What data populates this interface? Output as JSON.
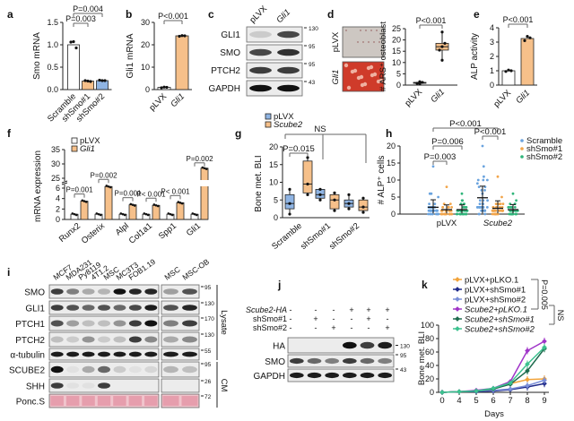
{
  "panel_labels": {
    "a": "a",
    "b": "b",
    "c": "c",
    "d": "d",
    "e": "e",
    "f": "f",
    "g": "g",
    "h": "h",
    "i": "i",
    "j": "j",
    "k": "k"
  },
  "colors": {
    "control": "#ffffff",
    "gli1": "#f6c08a",
    "scramble": "#7fa9dc",
    "sh1": "#f2a54a",
    "sh2": "#2fb57a",
    "bar_outline": "#222222"
  },
  "chart_data": [
    {
      "id": "a",
      "type": "bar",
      "title": "",
      "ylabel": "Smo mRNA",
      "xlabel": "",
      "categories": [
        "Scramble",
        "shSmo#1",
        "shSmo#2"
      ],
      "values": [
        1.0,
        0.19,
        0.2
      ],
      "points": [
        [
          1.06,
          1.07,
          0.93
        ],
        [
          0.2,
          0.19,
          0.18
        ],
        [
          0.21,
          0.2,
          0.2
        ]
      ],
      "bar_colors": [
        "#ffffff",
        "#f6c08a",
        "#8fb4e3"
      ],
      "ylim": [
        0,
        1.5
      ],
      "yticks": [
        0,
        0.5,
        1.0,
        1.5
      ],
      "yticklabels": [
        "0.0",
        "0.5",
        "1.0",
        "1.5"
      ],
      "annotations": [
        "P=0.004",
        "P=0.003"
      ]
    },
    {
      "id": "b",
      "type": "bar",
      "ylabel": "Gli1 mRNA",
      "categories": [
        "pLVX",
        "Gli1"
      ],
      "values": [
        1,
        24
      ],
      "points": [
        [
          0.8,
          1.1,
          1.0
        ],
        [
          23.8,
          24.1,
          24.0
        ]
      ],
      "bar_colors": [
        "#ffffff",
        "#f6c08a"
      ],
      "ylim": [
        0,
        30
      ],
      "yticks": [
        0,
        10,
        20,
        30
      ],
      "yticklabels": [
        "0",
        "10",
        "20",
        "30"
      ],
      "annotations": [
        "P<0.001"
      ]
    },
    {
      "id": "d",
      "type": "box",
      "ylabel": "# ARS⁺ osteoblast",
      "categories": [
        "pLVX",
        "Gli1"
      ],
      "boxes": [
        {
          "min": 0.5,
          "q1": 0.8,
          "median": 1,
          "q3": 1.2,
          "max": 1.5
        },
        {
          "min": 11,
          "q1": 15.5,
          "median": 17,
          "q3": 18.5,
          "max": 23.5
        }
      ],
      "box_colors": [
        "#ffffff",
        "#f6c08a"
      ],
      "ylim": [
        0,
        25
      ],
      "yticks": [
        0,
        5,
        10,
        15,
        20,
        25
      ],
      "yticklabels": [
        "0",
        "5",
        "10",
        "15",
        "20",
        "25"
      ],
      "annotations": [
        "P<0.001"
      ],
      "image_labels": [
        "pLVX",
        "Gli1"
      ]
    },
    {
      "id": "e",
      "type": "bar",
      "ylabel": "ALP activity",
      "categories": [
        "pLVX",
        "Gli1"
      ],
      "values": [
        1.0,
        3.25
      ],
      "points": [
        [
          0.95,
          1.05,
          1.0
        ],
        [
          3.1,
          3.4,
          3.3
        ]
      ],
      "bar_colors": [
        "#ffffff",
        "#f6c08a"
      ],
      "ylim": [
        0,
        4
      ],
      "yticks": [
        0,
        1,
        2,
        3,
        4
      ],
      "yticklabels": [
        "0",
        "1",
        "2",
        "3",
        "4"
      ],
      "annotations": [
        "P<0.001"
      ]
    },
    {
      "id": "f",
      "type": "bar",
      "ylabel": "mRNA expression",
      "categories": [
        "Runx2",
        "Osterix",
        "Alpl",
        "Col1a1",
        "Spp1",
        "Gli1"
      ],
      "series": [
        {
          "name": "pLVX",
          "values": [
            1,
            1,
            1,
            1,
            1,
            1
          ],
          "color": "#ffffff"
        },
        {
          "name": "Gli1",
          "values": [
            3.5,
            6.3,
            2.8,
            2.7,
            3.2,
            28.5
          ],
          "color": "#f6c08a"
        }
      ],
      "yticks_lower": [
        0,
        2,
        4,
        6
      ],
      "yticklabels_lower": [
        "0",
        "2",
        "4",
        "6"
      ],
      "yticks_upper": [
        25,
        30,
        35
      ],
      "yticklabels_upper": [
        "25",
        "30",
        "35"
      ],
      "axis_break": [
        7,
        25
      ],
      "annotations": [
        "P=0.001",
        "P=0.002",
        "P=0.001",
        "P< 0.001",
        "P< 0.001",
        "P=0.002"
      ]
    },
    {
      "id": "g",
      "type": "box",
      "ylabel": "Bone met. BLI",
      "categories": [
        "Scramble",
        "shSmo#1",
        "shSmo#2"
      ],
      "series": [
        {
          "name": "pLVX",
          "color": "#8fb4e3",
          "boxes": [
            {
              "min": 1,
              "q1": 2.5,
              "median": 4,
              "q3": 6.5,
              "max": 8
            },
            {
              "min": 5,
              "q1": 5.5,
              "median": 6.5,
              "q3": 8,
              "max": 8
            },
            {
              "min": 2.5,
              "q1": 3,
              "median": 4,
              "q3": 5,
              "max": 6.5
            }
          ]
        },
        {
          "name": "Scube2",
          "color": "#f6c08a",
          "boxes": [
            {
              "min": 6.5,
              "q1": 7,
              "median": 9.5,
              "q3": 16,
              "max": 17
            },
            {
              "min": 2,
              "q1": 2.5,
              "median": 5,
              "q3": 6.5,
              "max": 7
            },
            {
              "min": 1.5,
              "q1": 2,
              "median": 3,
              "q3": 5,
              "max": 5.5
            }
          ]
        }
      ],
      "ylim": [
        0,
        20
      ],
      "yticks": [
        0,
        5,
        10,
        15,
        20
      ],
      "yticklabels": [
        "0",
        "5",
        "10",
        "15",
        "20"
      ],
      "annotations": [
        "P=0.015",
        "NS"
      ],
      "legend_position": "top-left"
    },
    {
      "id": "h",
      "type": "scatter",
      "ylabel": "# ALP⁺ cells",
      "categories": [
        "pLVX",
        "Scube2"
      ],
      "series": [
        {
          "name": "Scramble",
          "color": "#6aa3de",
          "mean": [
            2.0,
            4.8
          ],
          "sd_upper": [
            4.2,
            8.2
          ],
          "max": [
            14,
            20
          ]
        },
        {
          "name": "shSmo#1",
          "color": "#f2a54a",
          "mean": [
            1.3,
            1.7
          ],
          "sd_upper": [
            2.7,
            3.9
          ],
          "max": [
            8,
            11
          ]
        },
        {
          "name": "shSmo#2",
          "color": "#2fb57a",
          "mean": [
            1.3,
            1.3
          ],
          "sd_upper": [
            2.7,
            2.8
          ],
          "max": [
            6,
            6
          ]
        }
      ],
      "ylim": [
        0,
        20
      ],
      "yticks": [
        0,
        5,
        10,
        15,
        20
      ],
      "yticklabels": [
        "0",
        "5",
        "10",
        "15",
        "20"
      ],
      "annotations": [
        "P=0.003",
        "P=0.006",
        "P<0.001",
        "P<0.001"
      ],
      "legend_position": "right"
    },
    {
      "id": "k",
      "type": "line",
      "ylabel": "Bone met. BLI",
      "xlabel": "Days",
      "x": [
        0,
        4,
        5,
        6,
        7,
        8,
        9
      ],
      "xticklabels": [
        "0",
        "4",
        "5",
        "6",
        "7",
        "8",
        "9"
      ],
      "series": [
        {
          "name": "pLVX+pLKO.1",
          "color": "#f2a33a",
          "values": [
            0,
            1,
            2,
            5,
            13,
            19,
            20
          ]
        },
        {
          "name": "pLVX+shSmo#1",
          "color": "#1f2a8a",
          "values": [
            0,
            1,
            1,
            2,
            4,
            8,
            13
          ]
        },
        {
          "name": "pLVX+shSmo#2",
          "color": "#7b8fd8",
          "values": [
            0,
            1,
            2,
            3,
            5,
            10,
            18
          ]
        },
        {
          "name": "Scube2+pLKO.1",
          "color": "#a034c8",
          "values": [
            0,
            1,
            3,
            6,
            16,
            62,
            76
          ]
        },
        {
          "name": "Scube2+shSmo#1",
          "color": "#1e6b4e",
          "values": [
            0,
            1,
            2,
            5,
            12,
            32,
            65
          ]
        },
        {
          "name": "Scube2+shSmo#2",
          "color": "#3cc28f",
          "values": [
            0,
            1,
            2,
            6,
            14,
            42,
            67
          ]
        }
      ],
      "ylim": [
        0,
        100
      ],
      "yticks": [
        0,
        20,
        40,
        60,
        80,
        100
      ],
      "yticklabels": [
        "0",
        "20",
        "40",
        "60",
        "80",
        "100"
      ],
      "annotations": [
        "P=0.005",
        "NS"
      ],
      "legend_position": "top"
    }
  ],
  "blots": {
    "c": {
      "lanes": [
        "pLVX",
        "Gli1"
      ],
      "rows": [
        {
          "label": "GLI1",
          "mw": "130",
          "bands": [
            0.15,
            0.75
          ]
        },
        {
          "label": "SMO",
          "mw": "95",
          "bands": [
            0.75,
            0.85
          ]
        },
        {
          "label": "PTCH2",
          "mw": "95",
          "bands": [
            0.8,
            0.8
          ]
        },
        {
          "label": "GAPDH",
          "mw": "43",
          "bands": [
            1,
            1
          ]
        }
      ]
    },
    "i": {
      "lanes": [
        "MCF7",
        "MDA231",
        "Py8119",
        "4T1.2",
        "MSC",
        "MC3T3",
        "FOB1.19",
        "MSC",
        "MSC-OB"
      ],
      "rows": [
        {
          "label": "SMO",
          "mw": "95",
          "bands": [
            0.8,
            0.5,
            0.3,
            0.25,
            1,
            0.9,
            0.9,
            0.35,
            0.7
          ]
        },
        {
          "label": "GLI1",
          "mw": "130",
          "bands": [
            0.8,
            0.7,
            0.6,
            0.7,
            0.6,
            0.75,
            0.95,
            0.7,
            0.9
          ]
        },
        {
          "label": "PTCH1",
          "mw": "170",
          "bands": [
            0.7,
            0.35,
            0.2,
            0.2,
            0.4,
            0.8,
            1,
            0.5,
            0.8
          ]
        },
        {
          "label": "PTCH2",
          "mw": "130",
          "bands": [
            0.2,
            0.15,
            0.4,
            0.15,
            0.2,
            0.8,
            0.45,
            0.3,
            0.45
          ]
        },
        {
          "label": "α-tubulin",
          "mw": "55",
          "bands": [
            0.95,
            0.95,
            0.95,
            0.95,
            0.95,
            0.95,
            0.95,
            0.95,
            0.95
          ]
        },
        {
          "label": "SCUBE2",
          "mw": "95",
          "bands": [
            1,
            0.05,
            0.3,
            0.6,
            0.15,
            0.05,
            0.1,
            0.25,
            0.2
          ]
        },
        {
          "label": "SHH",
          "mw": "26",
          "bands": [
            0.8,
            0.05,
            0.05,
            0.8,
            0,
            0,
            0,
            0,
            0
          ]
        },
        {
          "label": "Ponc.S",
          "mw": "72",
          "bands": [
            1,
            1,
            1,
            1,
            1,
            1,
            1,
            1,
            1
          ],
          "stain": true
        }
      ],
      "groups": [
        "Lysate",
        "CM"
      ]
    },
    "j": {
      "conditions": [
        {
          "label": "Scube2-HA",
          "signs": [
            "-",
            "-",
            "-",
            "+",
            "+",
            "+"
          ]
        },
        {
          "label": "shSmo#1",
          "signs": [
            "-",
            "+",
            "-",
            "-",
            "+",
            "-"
          ]
        },
        {
          "label": "shSmo#2",
          "signs": [
            "-",
            "-",
            "+",
            "-",
            "-",
            "+"
          ]
        }
      ],
      "rows": [
        {
          "label": "HA",
          "mw": "130",
          "bands": [
            0,
            0,
            0,
            1,
            0.8,
            0.95
          ]
        },
        {
          "label": "SMO",
          "mw": "95",
          "bands": [
            0.8,
            0.6,
            0.5,
            0.8,
            0.6,
            0.5
          ]
        },
        {
          "label": "GAPDH",
          "mw": "43",
          "bands": [
            0.95,
            0.95,
            0.95,
            0.95,
            0.95,
            0.95
          ]
        }
      ]
    }
  }
}
